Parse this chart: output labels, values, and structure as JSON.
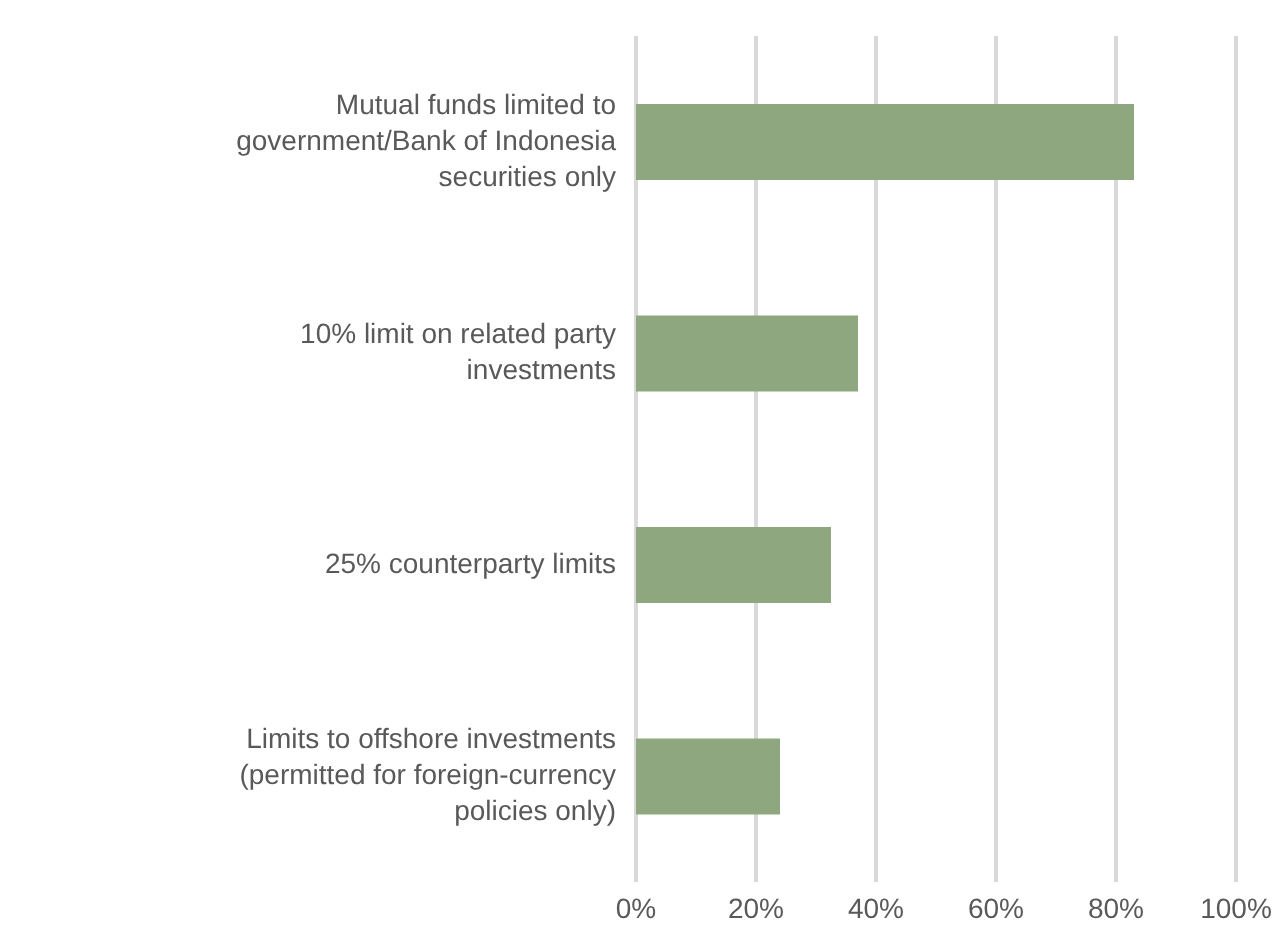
{
  "chart_data": {
    "type": "bar",
    "orientation": "horizontal",
    "categories": [
      "Mutual funds limited to government/Bank of Indonesia securities only",
      "10% limit on related party investments",
      "25% counterparty limits",
      "Limits to offshore investments (permitted for foreign-currency policies only)"
    ],
    "values": [
      83,
      37,
      32.5,
      24
    ],
    "color": "#8fa77e",
    "xlim": [
      0,
      100
    ],
    "xticks": [
      {
        "value": 0,
        "label": "0%"
      },
      {
        "value": 20,
        "label": "20%"
      },
      {
        "value": 40,
        "label": "40%"
      },
      {
        "value": 60,
        "label": "60%"
      },
      {
        "value": 80,
        "label": "80%"
      },
      {
        "value": 100,
        "label": "100%"
      }
    ],
    "grid": "x"
  }
}
